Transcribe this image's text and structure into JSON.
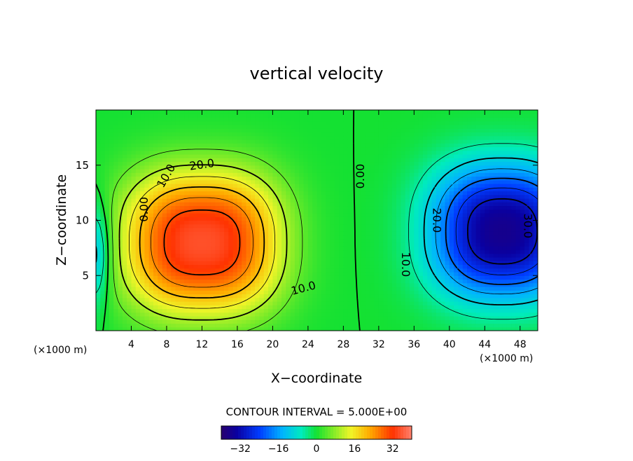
{
  "chart_data": {
    "type": "heatmap",
    "title": "vertical velocity",
    "xlabel": "X−coordinate",
    "ylabel": "Z−coordinate",
    "x_unit_left": "(×1000 m)",
    "x_unit_right": "(×1000 m)",
    "xlim": [
      0,
      50
    ],
    "ylim": [
      0,
      20
    ],
    "x_ticks": [
      4,
      8,
      12,
      16,
      20,
      24,
      28,
      32,
      36,
      40,
      44,
      48
    ],
    "y_ticks": [
      5,
      10,
      15
    ],
    "contour_interval_text": "CONTOUR INTERVAL = 5.000E+00",
    "colorbar": {
      "range": [
        -40,
        40
      ],
      "ticks": [
        -32,
        -16,
        0,
        16,
        32
      ]
    },
    "updraft": {
      "center_x": 12,
      "center_z": 8,
      "max": 35
    },
    "downdraft": {
      "center_x": 46,
      "center_z": 9,
      "min": -36
    },
    "contour_labels": [
      {
        "text": "0.00",
        "x": 5.5,
        "z": 11,
        "rotate": -90
      },
      {
        "text": "10.0",
        "x": 8.0,
        "z": 14,
        "rotate": -60
      },
      {
        "text": "20.0",
        "x": 12.0,
        "z": 15,
        "rotate": -8
      },
      {
        "text": "10.0",
        "x": 23.5,
        "z": 3.8,
        "rotate": -15
      },
      {
        "text": "0.00",
        "x": 30.0,
        "z": 14,
        "rotate": -90
      },
      {
        "text": "20.0",
        "x": 38.5,
        "z": 10,
        "rotate": 90
      },
      {
        "text": "10.0",
        "x": 35.0,
        "z": 6,
        "rotate": 90
      },
      {
        "text": "30.0",
        "x": 48.8,
        "z": 9.5,
        "rotate": 90
      }
    ]
  }
}
